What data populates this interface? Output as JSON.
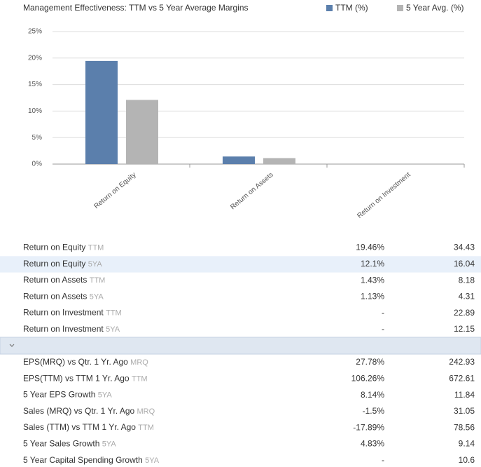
{
  "chart_data": {
    "type": "bar",
    "title": "Management Effectiveness: TTM vs 5 Year Average Margins",
    "categories": [
      "Return on Equity",
      "Return on Assets",
      "Return on Investment"
    ],
    "series": [
      {
        "name": "TTM (%)",
        "color": "#5b7fac",
        "values": [
          19.46,
          1.43,
          null
        ]
      },
      {
        "name": "5 Year Avg. (%)",
        "color": "#b4b4b4",
        "values": [
          12.1,
          1.13,
          null
        ]
      }
    ],
    "ylim": [
      0,
      25
    ],
    "yticks": [
      {
        "value": 0,
        "label": "0%"
      },
      {
        "value": 5,
        "label": "5%"
      },
      {
        "value": 10,
        "label": "10%"
      },
      {
        "value": 15,
        "label": "15%"
      },
      {
        "value": 20,
        "label": "20%"
      },
      {
        "value": 25,
        "label": "25%"
      }
    ],
    "grid": true,
    "legend": "top-right"
  },
  "table": {
    "sections": [
      {
        "rows": [
          [
            "Return on Equity",
            "TTM",
            "19.46%",
            "34.43"
          ],
          [
            "Return on Equity",
            "5YA",
            "12.1%",
            "16.04"
          ],
          [
            "Return on Assets",
            "TTM",
            "1.43%",
            "8.18"
          ],
          [
            "Return on Assets",
            "5YA",
            "1.13%",
            "4.31"
          ],
          [
            "Return on Investment",
            "TTM",
            "-",
            "22.89"
          ],
          [
            "Return on Investment",
            "5YA",
            "-",
            "12.15"
          ]
        ]
      },
      {
        "rows": [
          [
            "EPS(MRQ) vs Qtr. 1 Yr. Ago",
            "MRQ",
            "27.78%",
            "242.93"
          ],
          [
            "EPS(TTM) vs TTM 1 Yr. Ago",
            "TTM",
            "106.26%",
            "672.61"
          ],
          [
            "5 Year EPS Growth",
            "5YA",
            "8.14%",
            "11.84"
          ],
          [
            "Sales (MRQ) vs Qtr. 1 Yr. Ago",
            "MRQ",
            "-1.5%",
            "31.05"
          ],
          [
            "Sales (TTM) vs TTM 1 Yr. Ago",
            "TTM",
            "-17.89%",
            "78.56"
          ],
          [
            "5 Year Sales Growth",
            "5YA",
            "4.83%",
            "9.14"
          ],
          [
            "5 Year Capital Spending Growth",
            "5YA",
            "-",
            "10.6"
          ]
        ]
      }
    ]
  }
}
